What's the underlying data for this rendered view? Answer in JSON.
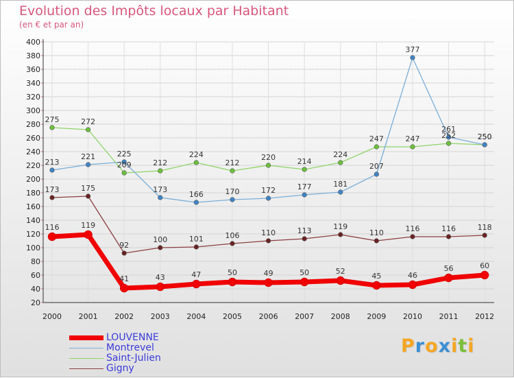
{
  "chart_data": {
    "type": "line",
    "title": "Evolution des Impôts locaux par Habitant",
    "subtitle": "(en € et par an)",
    "x": [
      "2000",
      "2001",
      "2002",
      "2003",
      "2004",
      "2005",
      "2006",
      "2007",
      "2008",
      "2009",
      "2010",
      "2011",
      "2012"
    ],
    "ylim": [
      20,
      400
    ],
    "yticks": [
      20,
      40,
      60,
      80,
      100,
      120,
      140,
      160,
      180,
      200,
      220,
      240,
      260,
      280,
      300,
      320,
      340,
      360,
      380,
      400
    ],
    "grid": true,
    "series": [
      {
        "name": "Saint-Julien",
        "color": "#8fd468",
        "marker": "#6cc23c",
        "values": [
          275,
          272,
          209,
          212,
          224,
          212,
          220,
          214,
          224,
          247,
          247,
          252,
          250
        ]
      },
      {
        "name": "Montrevel",
        "color": "#7aaed8",
        "marker": "#3f86c8",
        "values": [
          213,
          221,
          225,
          173,
          166,
          170,
          172,
          177,
          181,
          207,
          377,
          261,
          250
        ]
      },
      {
        "name": "Gigny",
        "color": "#8b3f3f",
        "marker": "#6b2222",
        "values": [
          173,
          175,
          92,
          100,
          101,
          106,
          110,
          113,
          119,
          110,
          116,
          116,
          118
        ]
      },
      {
        "name": "LOUVENNE",
        "color": "#f00000",
        "marker": "#f00000",
        "values": [
          116,
          119,
          41,
          43,
          47,
          50,
          49,
          50,
          52,
          45,
          46,
          56,
          60
        ]
      }
    ],
    "legend": [
      {
        "name": "LOUVENNE",
        "color": "#f00000"
      },
      {
        "name": "Montrevel",
        "color": "#7aaed8"
      },
      {
        "name": "Saint-Julien",
        "color": "#8fd468"
      },
      {
        "name": "Gigny",
        "color": "#8b3f3f"
      }
    ]
  },
  "brand": {
    "text": "Proxiti",
    "letters": [
      {
        "ch": "P",
        "color": "#f5a623"
      },
      {
        "ch": "r",
        "color": "#3b8fd4"
      },
      {
        "ch": "o",
        "color": "#f5a623"
      },
      {
        "ch": "x",
        "color": "#3b8fd4"
      },
      {
        "ch": "i",
        "color": "#f5a623"
      },
      {
        "ch": "t",
        "color": "#7dbf3a"
      },
      {
        "ch": "i",
        "color": "#f5a623"
      }
    ]
  }
}
